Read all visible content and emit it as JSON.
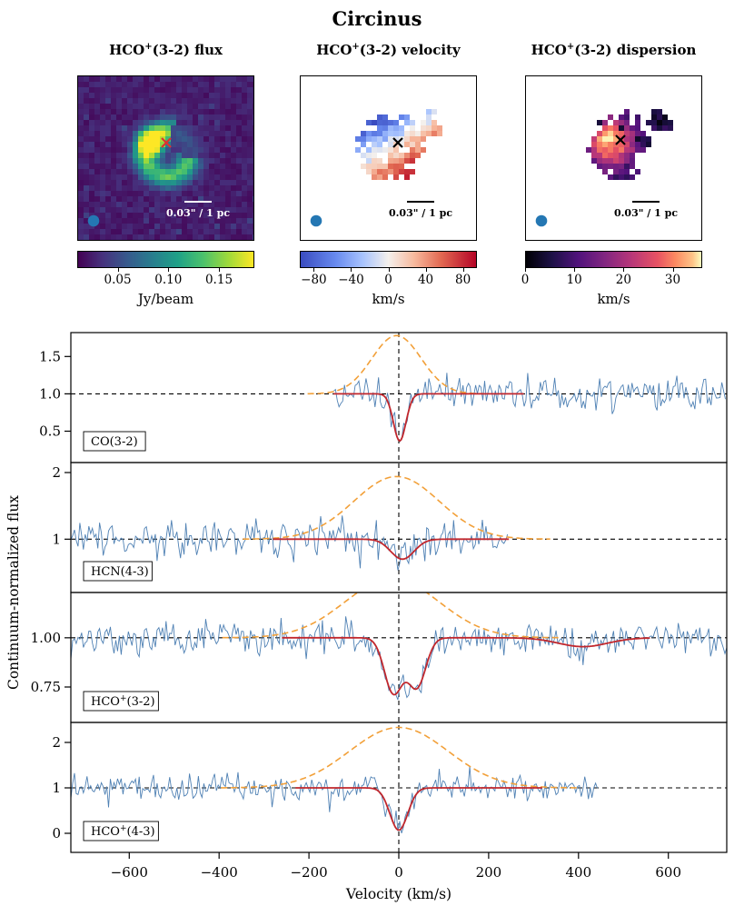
{
  "figure_title": "Circinus",
  "chart_data": {
    "type": "multi-panel astronomy figure (moment maps + absorption spectra)",
    "maps": [
      {
        "id": "flux",
        "title_pre": "HCO",
        "title_sup": "+",
        "title_post": "(3-2) flux",
        "scalebar_label": "0.03\" / 1 pc",
        "marker_color": "#e03131",
        "annotation_color": "#ffffff",
        "beam_color": "#2477b3",
        "colorbar": {
          "cmap": "viridis",
          "vmin": 0.01,
          "vmax": 0.185,
          "ticks": [
            0.05,
            0.1,
            0.15
          ],
          "tick_labels": [
            "0.05",
            "0.10",
            "0.15"
          ],
          "label": "Jy/beam"
        }
      },
      {
        "id": "velocity",
        "title_pre": "HCO",
        "title_sup": "+",
        "title_post": "(3-2) velocity",
        "scalebar_label": "0.03\" / 1 pc",
        "marker_color": "#000000",
        "annotation_color": "#000000",
        "beam_color": "#2477b3",
        "colorbar": {
          "cmap": "coolwarm",
          "vmin": -95,
          "vmax": 95,
          "ticks": [
            -80,
            -40,
            0,
            40,
            80
          ],
          "tick_labels": [
            "−80",
            "−40",
            "0",
            "40",
            "80"
          ],
          "label": "km/s"
        }
      },
      {
        "id": "dispersion",
        "title_pre": "HCO",
        "title_sup": "+",
        "title_post": "(3-2) dispersion",
        "scalebar_label": "0.03\" / 1 pc",
        "marker_color": "#000000",
        "annotation_color": "#000000",
        "beam_color": "#2477b3",
        "colorbar": {
          "cmap": "magma",
          "vmin": 0,
          "vmax": 36,
          "ticks": [
            0,
            10,
            20,
            30
          ],
          "tick_labels": [
            "0",
            "10",
            "20",
            "30"
          ],
          "label": "km/s"
        }
      }
    ],
    "spectra": {
      "xlabel": "Velocity (km/s)",
      "ylabel": "Continuum-normalized flux",
      "xlim": [
        -730,
        730
      ],
      "xticks": [
        -600,
        -400,
        -200,
        0,
        200,
        400,
        600
      ],
      "xtick_labels": [
        "−600",
        "−400",
        "−200",
        "0",
        "200",
        "400",
        "600"
      ],
      "baseline": 1.0,
      "colors": {
        "data": "#4f81b4",
        "fit": "#c1272d",
        "emission_model": "#f2a039",
        "reference": "#000000"
      },
      "panels": [
        {
          "label_pre": "CO",
          "label_sup": "",
          "label_post": "(3-2)",
          "ylim": [
            0.08,
            1.82
          ],
          "yticks": [
            0.5,
            1.0,
            1.5
          ],
          "ytick_labels": [
            "0.5",
            "1.0",
            "1.5"
          ],
          "data_xrange": [
            -145,
            730
          ],
          "fit_xrange": [
            -145,
            280
          ],
          "noise_sigma": 0.11,
          "emission": {
            "amplitude": 0.78,
            "center": -5,
            "sigma": 55
          },
          "absorption": [
            {
              "depth": 0.63,
              "center": 2,
              "sigma": 14
            }
          ]
        },
        {
          "label_pre": "HCN",
          "label_sup": "",
          "label_post": "(4-3)",
          "ylim": [
            0.2,
            2.15
          ],
          "yticks": [
            1,
            2
          ],
          "ytick_labels": [
            "1",
            "2"
          ],
          "data_xrange": [
            -730,
            245
          ],
          "fit_xrange": [
            -280,
            330
          ],
          "noise_sigma": 0.16,
          "emission": {
            "amplitude": 0.94,
            "center": -5,
            "sigma": 95
          },
          "absorption": [
            {
              "depth": 0.3,
              "center": 8,
              "sigma": 26
            }
          ]
        },
        {
          "label_pre": "HCO",
          "label_sup": "+",
          "label_post": "(3-2)",
          "ylim": [
            0.57,
            1.23
          ],
          "yticks": [
            0.75,
            1.0
          ],
          "ytick_labels": [
            "0.75",
            "1.00"
          ],
          "data_xrange": [
            -730,
            730
          ],
          "fit_xrange": [
            -260,
            560
          ],
          "noise_sigma": 0.04,
          "emission": {
            "amplitude": 0.3,
            "center": -15,
            "sigma": 105
          },
          "absorption": [
            {
              "depth": 0.28,
              "center": -12,
              "sigma": 20
            },
            {
              "depth": 0.25,
              "center": 40,
              "sigma": 20
            },
            {
              "depth": 0.045,
              "center": 410,
              "sigma": 55
            }
          ]
        },
        {
          "label_pre": "HCO",
          "label_sup": "+",
          "label_post": "(4-3)",
          "ylim": [
            -0.42,
            2.44
          ],
          "yticks": [
            0,
            1,
            2
          ],
          "ytick_labels": [
            "0",
            "1",
            "2"
          ],
          "data_xrange": [
            -730,
            445
          ],
          "fit_xrange": [
            -230,
            320
          ],
          "noise_sigma": 0.14,
          "emission": {
            "amplitude": 1.33,
            "center": 0,
            "sigma": 110
          },
          "absorption": [
            {
              "depth": 0.93,
              "center": 0,
              "sigma": 20
            }
          ]
        }
      ]
    }
  }
}
